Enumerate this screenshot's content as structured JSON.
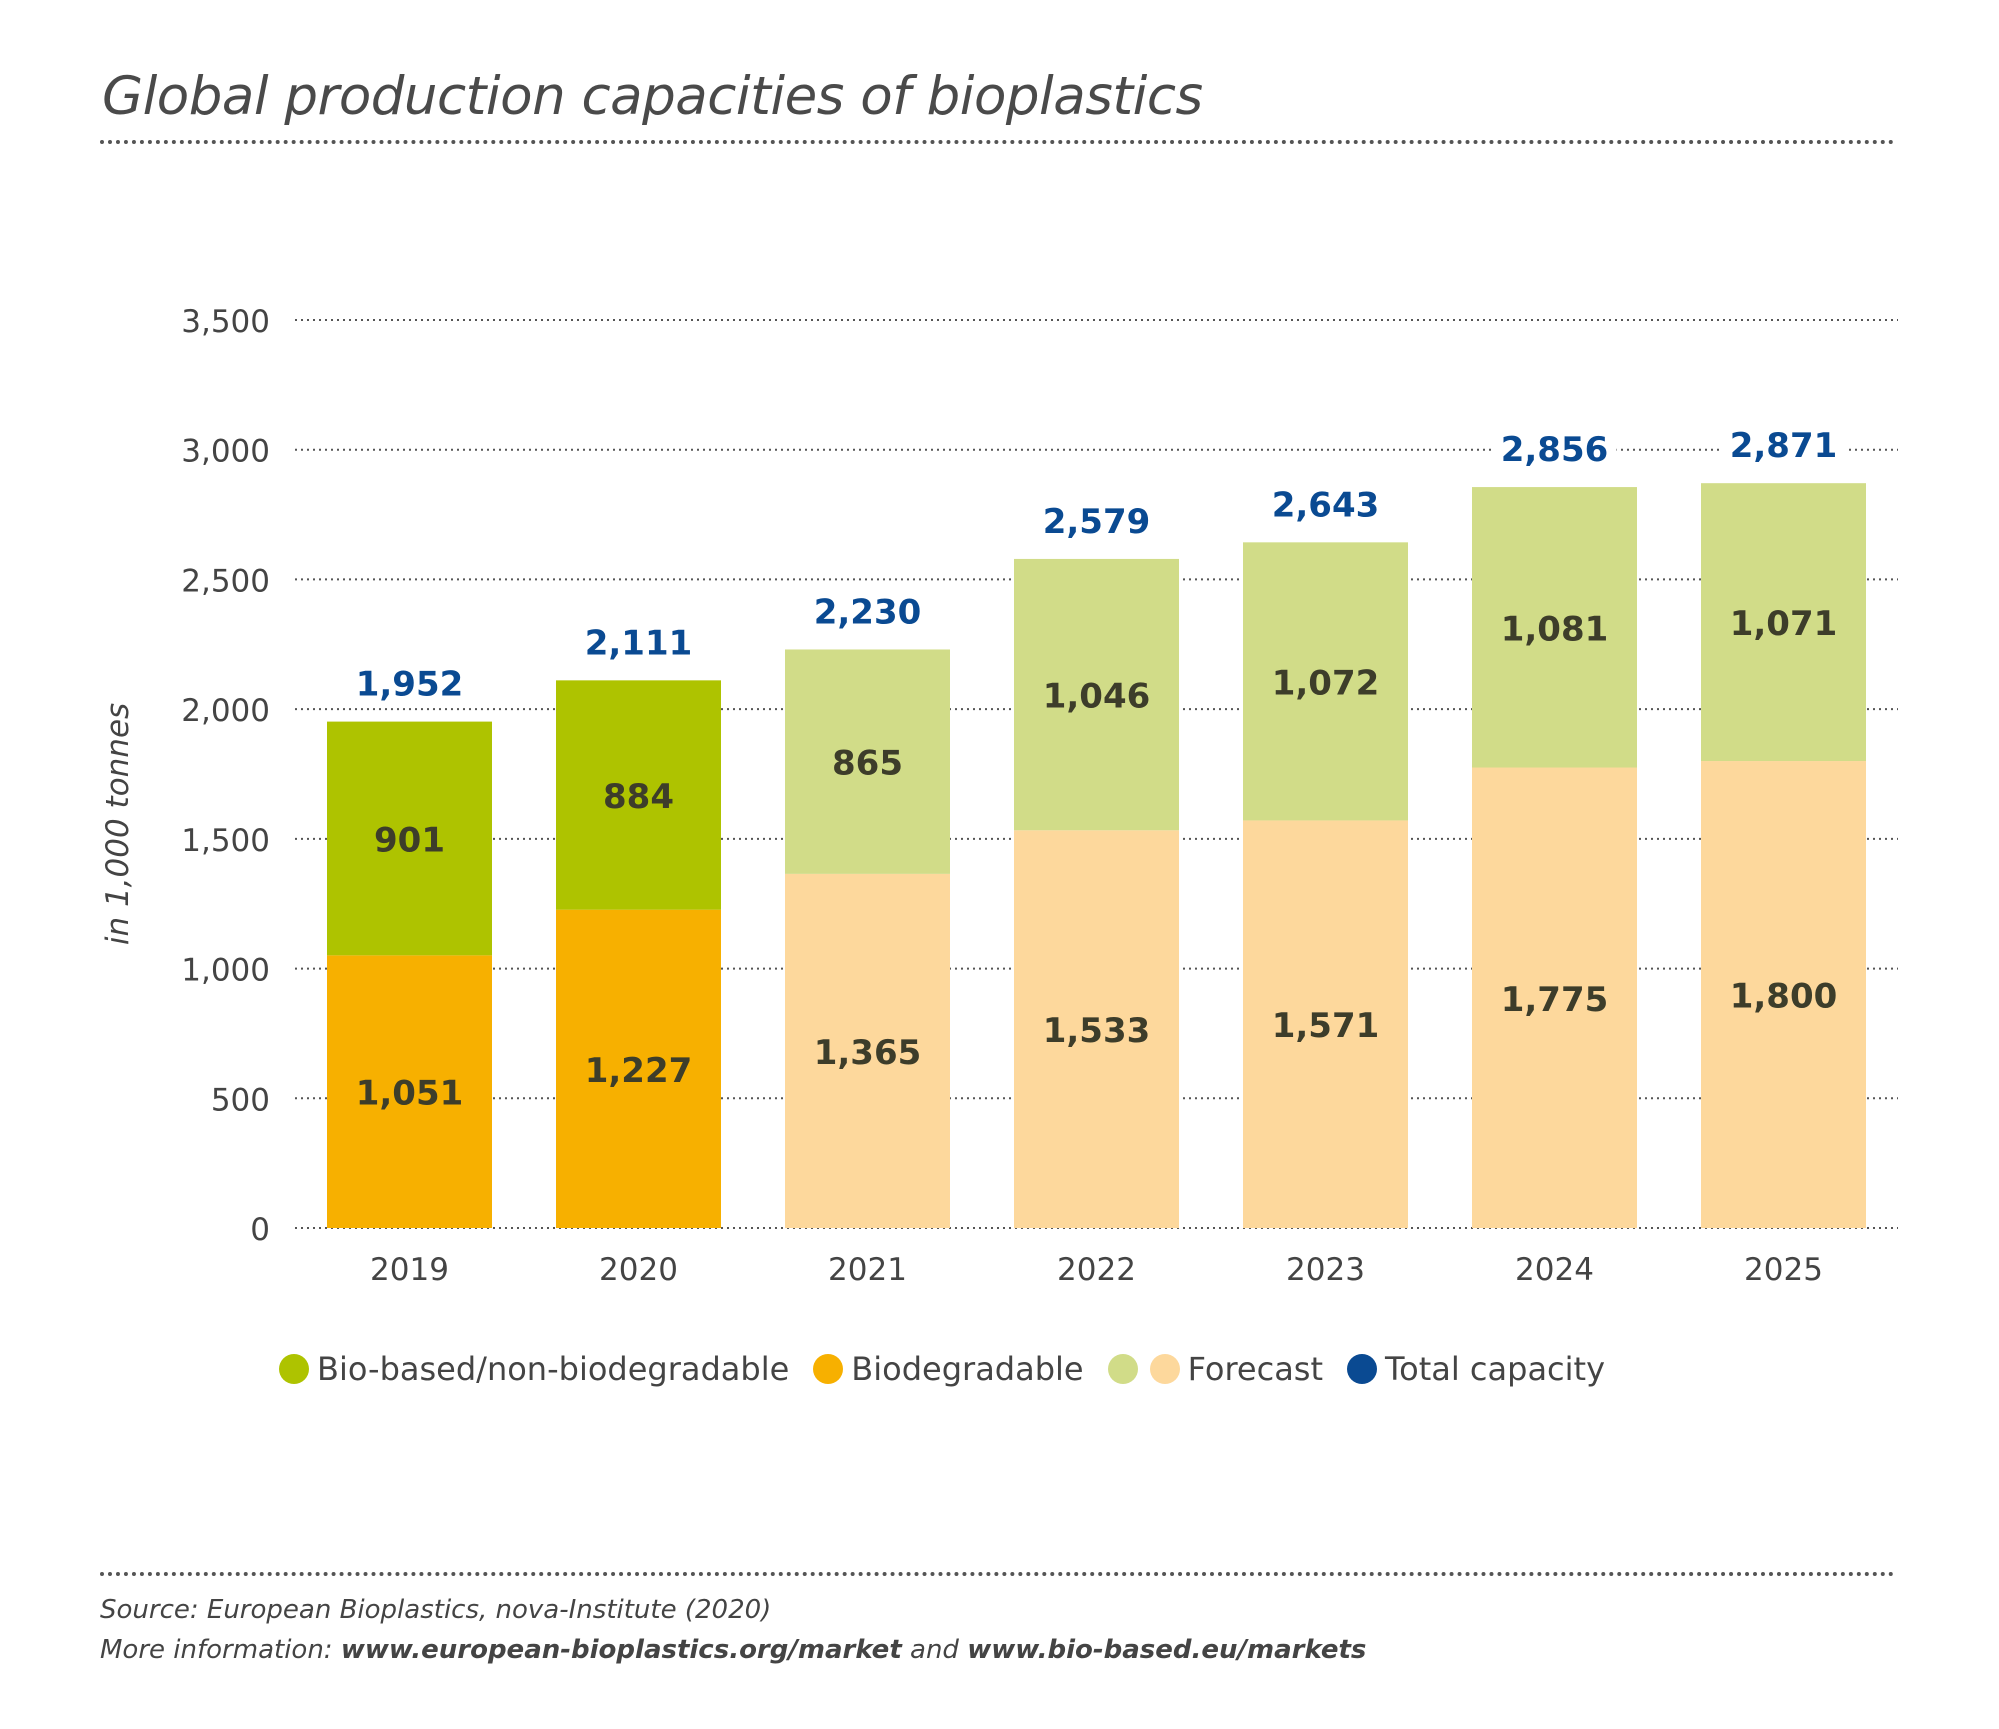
{
  "title": "Global production capacities of bioplastics",
  "chart_data": {
    "type": "bar",
    "stacked": true,
    "ylabel": "in 1,000 tonnes",
    "ylim": [
      0,
      3500
    ],
    "yticks": [
      "0",
      "500",
      "1,000",
      "1,500",
      "2,000",
      "2,500",
      "3,000",
      "3,500"
    ],
    "ytick_values": [
      0,
      500,
      1000,
      1500,
      2000,
      2500,
      3000,
      3500
    ],
    "grid": true,
    "categories": [
      "2019",
      "2020",
      "2021",
      "2022",
      "2023",
      "2024",
      "2025"
    ],
    "forecast_from_index": 2,
    "series": [
      {
        "name": "Biodegradable",
        "values": [
          1051,
          1227,
          1365,
          1533,
          1571,
          1775,
          1800
        ],
        "labels": [
          "1,051",
          "1,227",
          "1,365",
          "1,533",
          "1,571",
          "1,775",
          "1,800"
        ]
      },
      {
        "name": "Bio-based/non-biodegradable",
        "values": [
          901,
          884,
          865,
          1046,
          1072,
          1081,
          1071
        ],
        "labels": [
          "901",
          "884",
          "865",
          "1,046",
          "1,072",
          "1,081",
          "1,071"
        ]
      }
    ],
    "totals": {
      "name": "Total capacity",
      "values": [
        1952,
        2111,
        2230,
        2579,
        2643,
        2856,
        2871
      ],
      "labels": [
        "1,952",
        "2,111",
        "2,230",
        "2,579",
        "2,643",
        "2,856",
        "2,871"
      ]
    },
    "colors": {
      "biobased": "#aec300",
      "biodegradable": "#f7b000",
      "forecast_biobased": "#d1dc88",
      "forecast_biodegradable": "#fdd89c",
      "total": "#0a4a92",
      "segment_label": "#3d3d2a",
      "axis_text": "#444444",
      "grid": "#555555"
    }
  },
  "legend": {
    "biobased": "Bio-based/non-biodegradable",
    "biodegradable": "Biodegradable",
    "forecast": "Forecast",
    "total": "Total capacity"
  },
  "footer": {
    "source": "Source: European Bioplastics, nova-Institute (2020)",
    "more_prefix": "More information: ",
    "link1": "www.european-bioplastics.org/market",
    "and": " and ",
    "link2": "www.bio-based.eu/markets"
  }
}
